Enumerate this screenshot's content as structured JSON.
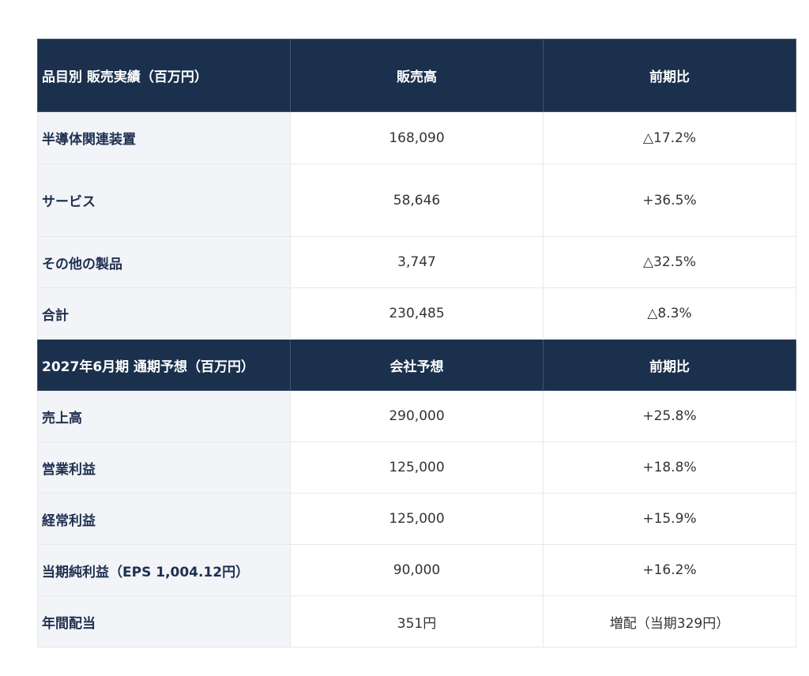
{
  "section1": {
    "headers": [
      "品目別 販売実績（百万円）",
      "販売高",
      "前期比"
    ],
    "rows": [
      {
        "label": "半導体関連装置",
        "value": "168,090",
        "change": "△17.2%",
        "trend": "negative"
      },
      {
        "label": "サービス",
        "value": "58,646",
        "change": "+36.5%",
        "trend": "positive"
      },
      {
        "label": "その他の製品",
        "value": "3,747",
        "change": "△32.5%",
        "trend": "negative"
      },
      {
        "label": "合計",
        "value": "230,485",
        "change": "△8.3%",
        "trend": "negative"
      }
    ]
  },
  "section2": {
    "headers": [
      "2027年6月期 通期予想（百万円）",
      "会社予想",
      "前期比"
    ],
    "rows": [
      {
        "label": "売上高",
        "value": "290,000",
        "change": "+25.8%",
        "trend": "positive"
      },
      {
        "label": "営業利益",
        "value": "125,000",
        "change": "+18.8%",
        "trend": "positive"
      },
      {
        "label": "経常利益",
        "value": "125,000",
        "change": "+15.9%",
        "trend": "positive"
      },
      {
        "label": "当期純利益（EPS 1,004.12円）",
        "value": "90,000",
        "change": "+16.2%",
        "trend": "positive"
      },
      {
        "label": "年間配当",
        "value": "351円",
        "change": "増配（当期329円）",
        "trend": "neutral"
      }
    ]
  },
  "colors": {
    "header_bg": "#1b304d",
    "label_bg": "#f3f4f8",
    "positive": "#2f8a3c",
    "negative": "#333333"
  }
}
